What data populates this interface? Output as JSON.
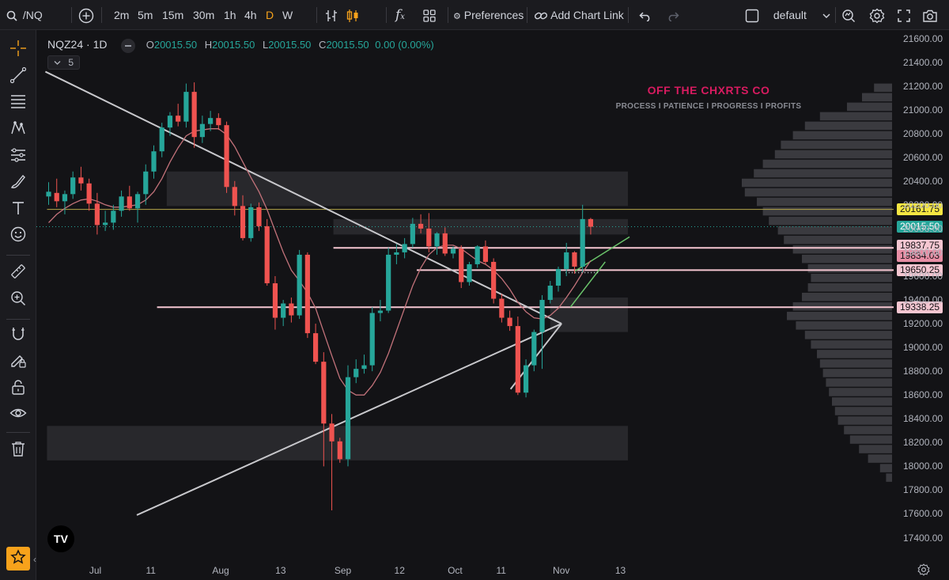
{
  "toolbar": {
    "symbol": "/NQ",
    "intervals": [
      "2m",
      "5m",
      "15m",
      "30m",
      "1h",
      "4h",
      "D",
      "W"
    ],
    "active_interval": "D",
    "preferences_label": "Preferences",
    "add_chart_link_label": "Add Chart Link",
    "layout_name": "default"
  },
  "legend": {
    "symbol": "NQZ24 · 1D",
    "open_label": "O",
    "open": "20015.50",
    "high_label": "H",
    "high": "20015.50",
    "low_label": "L",
    "low": "20015.50",
    "close_label": "C",
    "close": "20015.50",
    "change": "0.00 (0.00%)",
    "indicator_count": "5"
  },
  "watermark": {
    "title": "OFF THE CHXRTS CO",
    "subtitle": "PROCESS I PATIENCE I PROGRESS I PROFITS"
  },
  "logo_text": "TV",
  "colors": {
    "up": "#26a69a",
    "down": "#ef5350",
    "ma": "#c2727a",
    "hline_pink": "#f5c6d1",
    "hline_yellow": "#f5e642",
    "last_price": "#26a69a"
  },
  "chart_data": {
    "type": "candlestick",
    "symbol": "NQZ24",
    "timeframe": "1D",
    "y_ticks": [
      21600,
      21400,
      21200,
      21000,
      20800,
      20600,
      20400,
      20200,
      20000,
      19800,
      19600,
      19400,
      19200,
      19000,
      18800,
      18600,
      18400,
      18200,
      18000,
      17800,
      17600,
      17400
    ],
    "y_tick_labels": [
      "21600.00",
      "21400.00",
      "21200.00",
      "21000.00",
      "20800.00",
      "20600.00",
      "20400.00",
      "20200.00",
      "20000.00",
      "19800.00",
      "19600.00",
      "19400.00",
      "19200.00",
      "19000.00",
      "18800.00",
      "18600.00",
      "18400.00",
      "18200.00",
      "18000.00",
      "17800.00",
      "17600.00",
      "17400.00"
    ],
    "ylim": [
      17300,
      21700
    ],
    "x_ticks": [
      {
        "label": "Jul",
        "bar": 6.0
      },
      {
        "label": "11",
        "bar": 13.0
      },
      {
        "label": "Aug",
        "bar": 21.2
      },
      {
        "label": "13",
        "bar": 29.0
      },
      {
        "label": "Sep",
        "bar": 36.3
      },
      {
        "label": "12",
        "bar": 43.7
      },
      {
        "label": "Oct",
        "bar": 50.3
      },
      {
        "label": "11",
        "bar": 56.3
      },
      {
        "label": "Nov",
        "bar": 63.3
      },
      {
        "label": "13",
        "bar": 71.0
      }
    ],
    "price_tags": [
      {
        "value": 20161.75,
        "label": "20161.75",
        "color": "#f5e642"
      },
      {
        "value": 20015.5,
        "label": "20015.50",
        "color": "#26a69a"
      },
      {
        "value": 19837.75,
        "label": "19837.75",
        "color": "#f5c6d1"
      },
      {
        "value": 19834.03,
        "label": "19834.03",
        "color": "#e88ea5"
      },
      {
        "value": 19650.25,
        "label": "19650.25",
        "color": "#f5c6d1"
      },
      {
        "value": 19338.25,
        "label": "19338.25",
        "color": "#f5c6d1"
      }
    ],
    "candles": [
      [
        20270,
        20390,
        20200,
        20310
      ],
      [
        20300,
        20420,
        20180,
        20230
      ],
      [
        20230,
        20320,
        20120,
        20290
      ],
      [
        20290,
        20480,
        20250,
        20430
      ],
      [
        20430,
        20520,
        20320,
        20380
      ],
      [
        20380,
        20420,
        20150,
        20210
      ],
      [
        20210,
        20300,
        19950,
        20030
      ],
      [
        20030,
        20150,
        19980,
        20050
      ],
      [
        20050,
        20200,
        19990,
        20150
      ],
      [
        20150,
        20320,
        20100,
        20270
      ],
      [
        20270,
        20360,
        20150,
        20170
      ],
      [
        20170,
        20310,
        20050,
        20290
      ],
      [
        20290,
        20540,
        20200,
        20480
      ],
      [
        20480,
        20700,
        20420,
        20650
      ],
      [
        20650,
        20890,
        20600,
        20850
      ],
      [
        20850,
        20980,
        20780,
        20950
      ],
      [
        20950,
        21050,
        20860,
        20900
      ],
      [
        20900,
        21220,
        20850,
        21150
      ],
      [
        21150,
        21230,
        20680,
        20770
      ],
      [
        20770,
        20950,
        20720,
        20880
      ],
      [
        20880,
        20990,
        20820,
        20930
      ],
      [
        20930,
        20970,
        20830,
        20870
      ],
      [
        20870,
        20900,
        20300,
        20350
      ],
      [
        20350,
        20400,
        20110,
        20190
      ],
      [
        20190,
        20280,
        19900,
        19920
      ],
      [
        19920,
        20210,
        19890,
        20180
      ],
      [
        20180,
        20220,
        19980,
        20020
      ],
      [
        20020,
        20080,
        19520,
        19540
      ],
      [
        19540,
        19600,
        19150,
        19250
      ],
      [
        19250,
        19400,
        19180,
        19370
      ],
      [
        19370,
        19420,
        19210,
        19270
      ],
      [
        19270,
        19820,
        19240,
        19780
      ],
      [
        19780,
        19800,
        19080,
        19120
      ],
      [
        19120,
        19200,
        18860,
        18880
      ],
      [
        18880,
        18960,
        18000,
        18360
      ],
      [
        18360,
        18440,
        17630,
        18210
      ],
      [
        18210,
        18240,
        18030,
        18060
      ],
      [
        18060,
        18850,
        18000,
        18750
      ],
      [
        18750,
        18900,
        18700,
        18820
      ],
      [
        18820,
        18940,
        18780,
        18850
      ],
      [
        18850,
        19340,
        18800,
        19290
      ],
      [
        19290,
        19400,
        19220,
        19310
      ],
      [
        19310,
        19840,
        19290,
        19780
      ],
      [
        19780,
        19870,
        19700,
        19800
      ],
      [
        19800,
        19920,
        19750,
        19870
      ],
      [
        19870,
        20090,
        19840,
        20040
      ],
      [
        20040,
        20120,
        19960,
        20000
      ],
      [
        20000,
        20130,
        19800,
        19850
      ],
      [
        19850,
        19970,
        19780,
        19960
      ],
      [
        19960,
        20010,
        19770,
        19790
      ],
      [
        19790,
        19850,
        19750,
        19830
      ],
      [
        19830,
        19860,
        19500,
        19550
      ],
      [
        19550,
        19720,
        19520,
        19700
      ],
      [
        19700,
        19860,
        19670,
        19850
      ],
      [
        19850,
        19900,
        19700,
        19720
      ],
      [
        19720,
        19750,
        19370,
        19410
      ],
      [
        19410,
        19450,
        19210,
        19250
      ],
      [
        19250,
        19310,
        19140,
        19180
      ],
      [
        19180,
        19260,
        18600,
        18620
      ],
      [
        18620,
        18900,
        18580,
        18850
      ],
      [
        18850,
        19150,
        18800,
        19130
      ],
      [
        19130,
        19440,
        18820,
        19400
      ],
      [
        19400,
        19560,
        19370,
        19520
      ],
      [
        19520,
        19680,
        19470,
        19660
      ],
      [
        19660,
        19880,
        19600,
        19800
      ],
      [
        19800,
        19810,
        19620,
        19680
      ],
      [
        19680,
        20200,
        19630,
        20080
      ],
      [
        20080,
        20090,
        19950,
        20015.5
      ]
    ],
    "ma_series": [
      20050,
      20120,
      20170,
      20210,
      20240,
      20250,
      20230,
      20200,
      20180,
      20180,
      20190,
      20200,
      20240,
      20310,
      20420,
      20560,
      20680,
      20780,
      20820,
      20830,
      20840,
      20840,
      20790,
      20690,
      20560,
      20430,
      20310,
      20160,
      19980,
      19800,
      19650,
      19560,
      19460,
      19330,
      19130,
      18930,
      18740,
      18640,
      18600,
      18600,
      18680,
      18790,
      18950,
      19140,
      19330,
      19520,
      19670,
      19780,
      19840,
      19860,
      19860,
      19830,
      19780,
      19730,
      19700,
      19650,
      19580,
      19490,
      19380,
      19300,
      19250,
      19240,
      19270,
      19330,
      19420,
      19520,
      19630,
      19730
    ],
    "trendlines": [
      {
        "from": [
          -0.4,
          21320
        ],
        "to": [
          63.4,
          19200
        ],
        "color": "#c8c8cc"
      },
      {
        "from": [
          10.9,
          17590
        ],
        "to": [
          63.4,
          19200
        ],
        "color": "#c8c8cc"
      },
      {
        "from": [
          57.1,
          18650
        ],
        "to": [
          63.4,
          19200
        ],
        "color": "#c8c8cc"
      },
      {
        "from": [
          64.5,
          19340
        ],
        "to": [
          68.8,
          19720
        ],
        "color": "#6ac36a"
      },
      {
        "from": [
          65.0,
          19640
        ],
        "to": [
          71.8,
          19930
        ],
        "color": "#6ac36a"
      }
    ],
    "zones": [
      {
        "x1": 14.6,
        "x2": 71.6,
        "y1": 20480,
        "y2": 20190
      },
      {
        "x1": 35.2,
        "x2": 71.6,
        "y1": 20080,
        "y2": 19950
      },
      {
        "x1": 62.0,
        "x2": 71.6,
        "y1": 19420,
        "y2": 19130
      },
      {
        "x1": -0.2,
        "x2": 71.6,
        "y1": 18340,
        "y2": 18050
      }
    ],
    "hlines": [
      {
        "value": 20161.75,
        "x1": -0.2,
        "color": "#b5a648"
      },
      {
        "value": 19837.75,
        "x1": 35.2,
        "color": "#f5c6d1"
      },
      {
        "value": 19650.25,
        "x1": 45.5,
        "color": "#f5c6d1"
      },
      {
        "value": 19338.25,
        "x1": 13.4,
        "color": "#f5c6d1"
      }
    ],
    "volume_profile_bins": [
      [
        21260,
        0.0
      ],
      [
        21180,
        0.12
      ],
      [
        21100,
        0.2
      ],
      [
        21020,
        0.3
      ],
      [
        20940,
        0.48
      ],
      [
        20860,
        0.58
      ],
      [
        20780,
        0.66
      ],
      [
        20700,
        0.74
      ],
      [
        20620,
        0.78
      ],
      [
        20540,
        0.86
      ],
      [
        20460,
        0.92
      ],
      [
        20380,
        1.0
      ],
      [
        20300,
        0.98
      ],
      [
        20220,
        0.9
      ],
      [
        20140,
        0.86
      ],
      [
        20060,
        0.82
      ],
      [
        19980,
        0.76
      ],
      [
        19900,
        0.72
      ],
      [
        19820,
        0.66
      ],
      [
        19740,
        0.6
      ],
      [
        19660,
        0.56
      ],
      [
        19580,
        0.54
      ],
      [
        19500,
        0.56
      ],
      [
        19420,
        0.6
      ],
      [
        19340,
        0.66
      ],
      [
        19260,
        0.7
      ],
      [
        19180,
        0.64
      ],
      [
        19100,
        0.58
      ],
      [
        19020,
        0.54
      ],
      [
        18940,
        0.5
      ],
      [
        18860,
        0.48
      ],
      [
        18780,
        0.46
      ],
      [
        18700,
        0.44
      ],
      [
        18620,
        0.42
      ],
      [
        18540,
        0.4
      ],
      [
        18460,
        0.38
      ],
      [
        18380,
        0.36
      ],
      [
        18300,
        0.32
      ],
      [
        18220,
        0.28
      ],
      [
        18140,
        0.22
      ],
      [
        18060,
        0.16
      ],
      [
        17980,
        0.08
      ],
      [
        17900,
        0.04
      ]
    ]
  }
}
